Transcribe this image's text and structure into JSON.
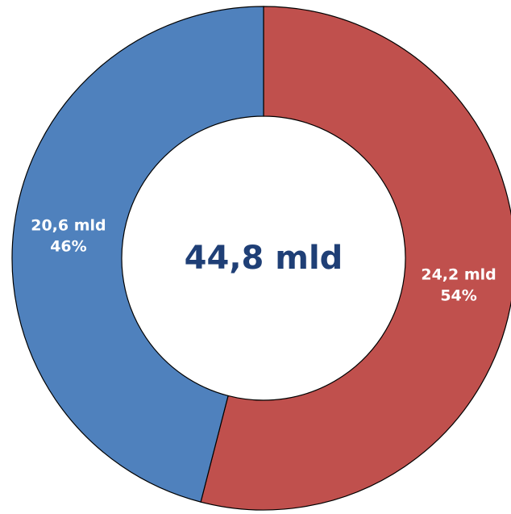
{
  "chart_data": {
    "type": "pie",
    "variant": "donut",
    "center_label": "44,8 mld",
    "slices": [
      {
        "value": 24.2,
        "percent": 54,
        "value_label": "24,2 mld",
        "percent_label": "54%",
        "color": "#C0504D"
      },
      {
        "value": 20.6,
        "percent": 46,
        "value_label": "20,6 mld",
        "percent_label": "46%",
        "color": "#4F81BD"
      }
    ],
    "total": 44.8,
    "start_angle": "12 o'clock",
    "direction": "clockwise",
    "legend": "none",
    "colors": {
      "center_text": "#1F3F76",
      "slice_text": "#FFFFFF",
      "outline": "#000000"
    }
  }
}
